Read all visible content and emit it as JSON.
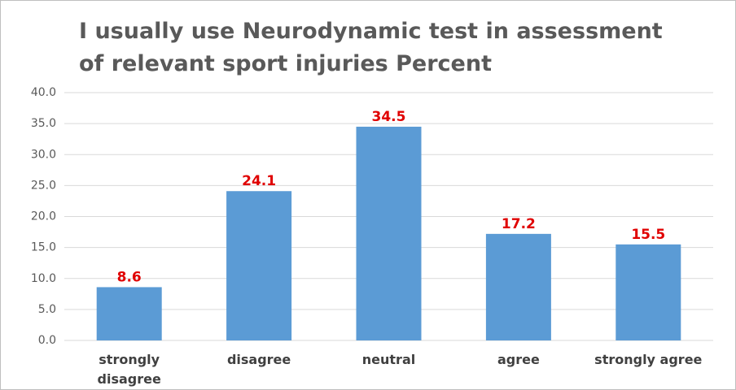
{
  "chart_data": {
    "type": "bar",
    "title": "I usually use Neurodynamic test in assessment of relevant sport injuries Percent",
    "categories": [
      "strongly disagree",
      "disagree",
      "neutral",
      "agree",
      "strongly agree"
    ],
    "values": [
      8.6,
      24.1,
      34.5,
      17.2,
      15.5
    ],
    "color": "#5b9bd5",
    "value_label_color": "#e00000",
    "ylim": [
      0,
      40
    ],
    "yticks": [
      {
        "value": 0,
        "label": "0.0"
      },
      {
        "value": 5,
        "label": "5.0"
      },
      {
        "value": 10,
        "label": "10.0"
      },
      {
        "value": 15,
        "label": "15.0"
      },
      {
        "value": 20,
        "label": "20.0"
      },
      {
        "value": 25,
        "label": "25.0"
      },
      {
        "value": 30,
        "label": "30.0"
      },
      {
        "value": 35,
        "label": "35.0"
      },
      {
        "value": 40,
        "label": "40.0"
      }
    ],
    "grid": true
  }
}
